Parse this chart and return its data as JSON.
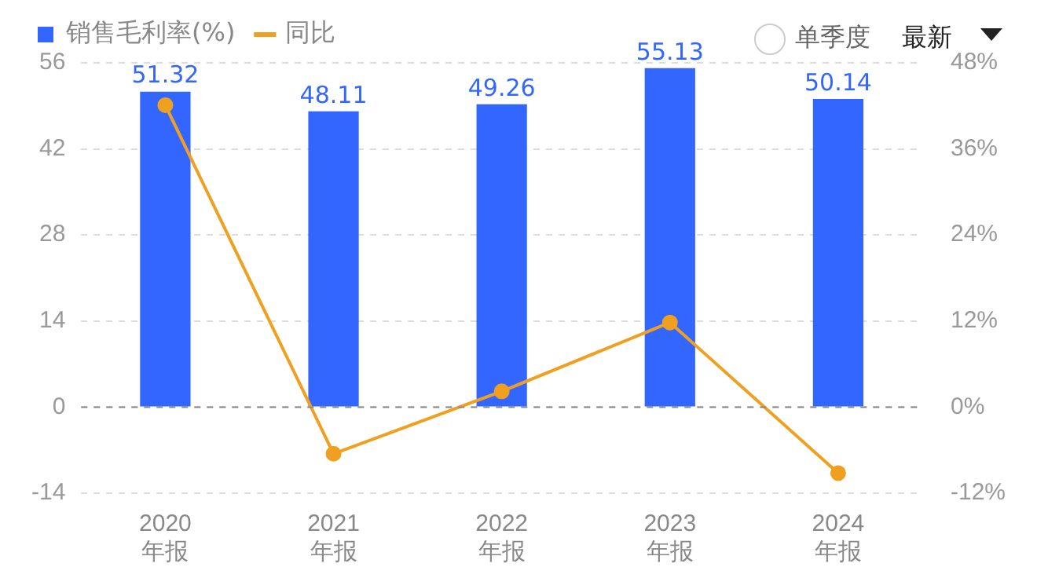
{
  "chart_data": {
    "type": "bar",
    "categories": [
      "2020\n年报",
      "2021\n年报",
      "2022\n年报",
      "2023\n年报",
      "2024\n年报"
    ],
    "series": [
      {
        "name": "销售毛利率(%)",
        "color": "#3366ff",
        "values": [
          51.32,
          48.11,
          49.26,
          55.13,
          50.14
        ]
      },
      {
        "name": "同比",
        "type": "line",
        "axis": "y2",
        "color": "#f0a020",
        "values": [
          42.1,
          -6.5,
          2.2,
          11.8,
          -9.2
        ]
      }
    ],
    "ylim": [
      -14,
      56
    ],
    "yticks": [
      -14,
      0,
      14,
      28,
      42,
      56
    ],
    "y2lim": [
      -12,
      48
    ],
    "y2ticks": [
      {
        "value": -12,
        "label": "-12%"
      },
      {
        "value": 0,
        "label": "0%"
      },
      {
        "value": 12,
        "label": "12%"
      },
      {
        "value": 24,
        "label": "24%"
      },
      {
        "value": 36,
        "label": "36%"
      },
      {
        "value": 48,
        "label": "48%"
      }
    ],
    "value_labels": [
      "51.32",
      "48.11",
      "49.26",
      "55.13",
      "50.14"
    ],
    "ref_lines": [
      {
        "axis": "y",
        "value": 0,
        "color": "#888888",
        "line_style": "dashed"
      }
    ],
    "grid": "y",
    "legend": "top left",
    "marker": "circle",
    "line_style": "solid",
    "annotations": [
      "单季度",
      "最新"
    ]
  }
}
